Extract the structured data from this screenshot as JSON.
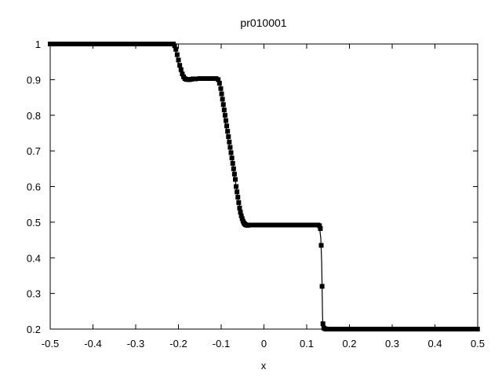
{
  "chart_data": {
    "type": "scatter",
    "title": "pr010001",
    "xlabel": "x",
    "ylabel": "",
    "xlim": [
      -0.5,
      0.5
    ],
    "ylim": [
      0.2,
      1.0
    ],
    "x_ticks": [
      "-0.5",
      "-0.4",
      "-0.3",
      "-0.2",
      "-0.1",
      "0",
      "0.1",
      "0.2",
      "0.3",
      "0.4",
      "0.5"
    ],
    "y_ticks": [
      "0.2",
      "0.3",
      "0.4",
      "0.5",
      "0.6",
      "0.7",
      "0.8",
      "0.9",
      "1"
    ],
    "grid": false,
    "series": [
      {
        "style": "line",
        "color": "#000000",
        "points": [
          [
            -0.5,
            1.0
          ],
          [
            -0.215,
            1.0
          ],
          [
            -0.21,
            0.995
          ],
          [
            -0.205,
            0.975
          ],
          [
            -0.2,
            0.945
          ],
          [
            -0.195,
            0.92
          ],
          [
            -0.19,
            0.907
          ],
          [
            -0.18,
            0.902
          ],
          [
            -0.17,
            0.902
          ],
          [
            -0.15,
            0.903
          ],
          [
            -0.11,
            0.903
          ],
          [
            -0.105,
            0.9
          ],
          [
            -0.1,
            0.87
          ],
          [
            -0.095,
            0.83
          ],
          [
            -0.09,
            0.78
          ],
          [
            -0.085,
            0.74
          ],
          [
            -0.08,
            0.71
          ],
          [
            -0.075,
            0.68
          ],
          [
            -0.07,
            0.64
          ],
          [
            -0.065,
            0.6
          ],
          [
            -0.06,
            0.56
          ],
          [
            -0.055,
            0.535
          ],
          [
            -0.05,
            0.515
          ],
          [
            -0.045,
            0.5
          ],
          [
            -0.04,
            0.494
          ],
          [
            -0.03,
            0.492
          ],
          [
            -0.02,
            0.492
          ],
          [
            0.0,
            0.492
          ],
          [
            0.05,
            0.492
          ],
          [
            0.1,
            0.492
          ],
          [
            0.125,
            0.49
          ],
          [
            0.13,
            0.485
          ],
          [
            0.133,
            0.455
          ],
          [
            0.135,
            0.39
          ],
          [
            0.136,
            0.32
          ],
          [
            0.137,
            0.24
          ],
          [
            0.138,
            0.205
          ],
          [
            0.14,
            0.201
          ],
          [
            0.2,
            0.2
          ],
          [
            0.3,
            0.2
          ],
          [
            0.38,
            0.2
          ],
          [
            0.4,
            0.201
          ],
          [
            0.5,
            0.201
          ]
        ]
      },
      {
        "style": "markers",
        "marker": "square",
        "color": "#000000",
        "points": [
          [
            -0.212,
            1.0
          ],
          [
            -0.209,
            0.995
          ],
          [
            -0.206,
            0.985
          ],
          [
            -0.203,
            0.97
          ],
          [
            -0.2,
            0.955
          ],
          [
            -0.197,
            0.94
          ],
          [
            -0.194,
            0.928
          ],
          [
            -0.191,
            0.916
          ],
          [
            -0.188,
            0.908
          ],
          [
            -0.185,
            0.903
          ],
          [
            -0.182,
            0.901
          ],
          [
            -0.178,
            0.9
          ],
          [
            -0.174,
            0.9
          ],
          [
            -0.17,
            0.901
          ],
          [
            -0.166,
            0.902
          ],
          [
            -0.16,
            0.902
          ],
          [
            -0.15,
            0.903
          ],
          [
            -0.14,
            0.903
          ],
          [
            -0.13,
            0.903
          ],
          [
            -0.12,
            0.903
          ],
          [
            -0.112,
            0.903
          ],
          [
            -0.107,
            0.9
          ],
          [
            -0.104,
            0.89
          ],
          [
            -0.101,
            0.875
          ],
          [
            -0.099,
            0.86
          ],
          [
            -0.097,
            0.845
          ],
          [
            -0.095,
            0.83
          ],
          [
            -0.093,
            0.815
          ],
          [
            -0.091,
            0.8
          ],
          [
            -0.089,
            0.785
          ],
          [
            -0.087,
            0.77
          ],
          [
            -0.085,
            0.755
          ],
          [
            -0.083,
            0.74
          ],
          [
            -0.081,
            0.725
          ],
          [
            -0.079,
            0.71
          ],
          [
            -0.077,
            0.695
          ],
          [
            -0.075,
            0.68
          ],
          [
            -0.073,
            0.665
          ],
          [
            -0.071,
            0.65
          ],
          [
            -0.069,
            0.635
          ],
          [
            -0.067,
            0.62
          ],
          [
            -0.065,
            0.6
          ],
          [
            -0.063,
            0.585
          ],
          [
            -0.061,
            0.57
          ],
          [
            -0.059,
            0.555
          ],
          [
            -0.057,
            0.54
          ],
          [
            -0.055,
            0.528
          ],
          [
            -0.053,
            0.518
          ],
          [
            -0.051,
            0.51
          ],
          [
            -0.049,
            0.503
          ],
          [
            -0.047,
            0.498
          ],
          [
            -0.045,
            0.495
          ],
          [
            -0.043,
            0.493
          ],
          [
            -0.041,
            0.492
          ],
          [
            -0.038,
            0.491
          ],
          [
            0.13,
            0.49
          ],
          [
            0.132,
            0.482
          ],
          [
            0.134,
            0.435
          ],
          [
            0.136,
            0.32
          ],
          [
            0.138,
            0.215
          ],
          [
            0.14,
            0.203
          ],
          [
            0.143,
            0.201
          ],
          [
            0.146,
            0.2
          ],
          [
            0.15,
            0.2
          ]
        ],
        "dense_runs": [
          {
            "x_from": -0.5,
            "x_to": -0.215,
            "y": 1.0,
            "step": 0.0025
          },
          {
            "x_from": -0.036,
            "x_to": 0.128,
            "y": 0.492,
            "step": 0.0025
          },
          {
            "x_from": 0.152,
            "x_to": 0.5,
            "y": 0.2,
            "step": 0.0025
          }
        ]
      }
    ]
  }
}
